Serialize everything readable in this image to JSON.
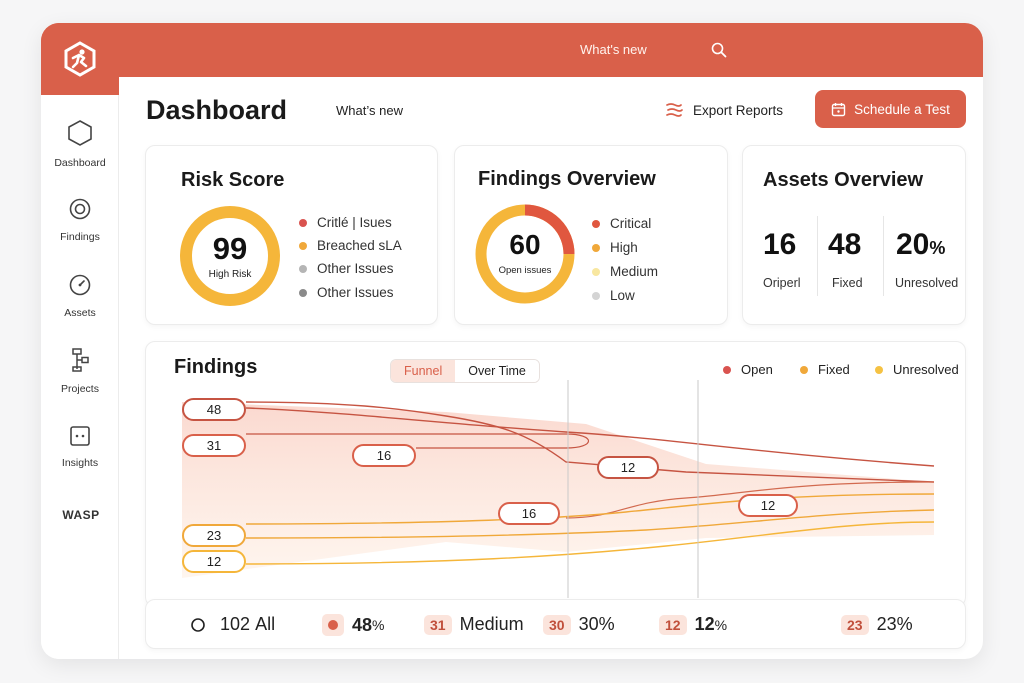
{
  "topbar": {
    "whats_new": "What's new"
  },
  "sidebar": {
    "items": [
      {
        "label": "Dashboard",
        "icon": "hexagon-icon"
      },
      {
        "label": "Findings",
        "icon": "target-icon"
      },
      {
        "label": "Assets",
        "icon": "gauge-icon"
      },
      {
        "label": "Projects",
        "icon": "flowchart-icon"
      },
      {
        "label": "Insights",
        "icon": "dice-icon"
      }
    ],
    "footer": "WASP"
  },
  "header": {
    "title": "Dashboard",
    "whats_new": "What’s new",
    "export_label": "Export Reports",
    "schedule_label": "Schedule a Test"
  },
  "risk": {
    "title": "Risk Score",
    "score": "99",
    "caption": "High Risk",
    "legend": [
      {
        "label": "Critlé | Isues",
        "color": "#d9534f"
      },
      {
        "label": "Breached sLA",
        "color": "#f0a83a"
      },
      {
        "label": "Other Issues",
        "color": "#b5b5b5"
      },
      {
        "label": "Other Issues",
        "color": "#8a8a8a"
      }
    ]
  },
  "findings_overview": {
    "title": "Findings Overview",
    "count": "60",
    "caption": "Open issues",
    "legend": [
      {
        "label": "Critical",
        "color": "#e0573f"
      },
      {
        "label": "High",
        "color": "#f0a83a"
      },
      {
        "label": "Medium",
        "color": "#f8e7a0"
      },
      {
        "label": "Low",
        "color": "#d4d4d4"
      }
    ]
  },
  "assets": {
    "title": "Assets Overview",
    "items": [
      {
        "value": "16",
        "label": "Oriperl"
      },
      {
        "value": "48",
        "label": "Fixed"
      },
      {
        "value": "20",
        "unit": "%",
        "label": "Unresolved"
      }
    ]
  },
  "findings": {
    "title": "Findings",
    "toggle": [
      "Funnel",
      "Over Time"
    ],
    "legend": [
      {
        "label": "Open",
        "color": "#d9534f"
      },
      {
        "label": "Fixed",
        "color": "#f0a83a"
      },
      {
        "label": "Unresolved",
        "color": "#f5c243"
      }
    ],
    "nodes": [
      "48",
      "31",
      "16",
      "12",
      "16",
      "12",
      "23",
      "12"
    ]
  },
  "stats": [
    {
      "value": "102",
      "label": "All",
      "icon": "circle-outline-icon"
    },
    {
      "value": "48",
      "unit": "%",
      "icon": "target-dot-icon"
    },
    {
      "badge": "31",
      "label": "Medium"
    },
    {
      "badge": "30",
      "label": "30%"
    },
    {
      "badge": "12",
      "value": "12",
      "unit": "%"
    },
    {
      "badge": "23",
      "label": "23%"
    }
  ]
}
